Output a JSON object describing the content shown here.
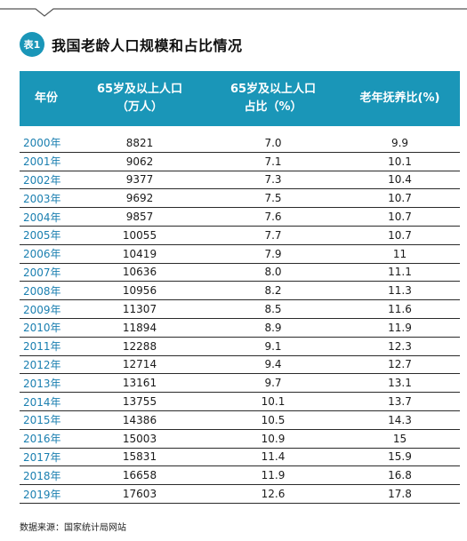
{
  "badge": "表1",
  "title": "我国老龄人口规模和占比情况",
  "columns": [
    "年份",
    "65岁及以上人口\n（万人）",
    "65岁及以上人口\n占比（%）",
    "老年抚养比(%)"
  ],
  "rows": [
    [
      "2000年",
      "8821",
      "7.0",
      "9.9"
    ],
    [
      "2001年",
      "9062",
      "7.1",
      "10.1"
    ],
    [
      "2002年",
      "9377",
      "7.3",
      "10.4"
    ],
    [
      "2003年",
      "9692",
      "7.5",
      "10.7"
    ],
    [
      "2004年",
      "9857",
      "7.6",
      "10.7"
    ],
    [
      "2005年",
      "10055",
      "7.7",
      "10.7"
    ],
    [
      "2006年",
      "10419",
      "7.9",
      "11"
    ],
    [
      "2007年",
      "10636",
      "8.0",
      "11.1"
    ],
    [
      "2008年",
      "10956",
      "8.2",
      "11.3"
    ],
    [
      "2009年",
      "11307",
      "8.5",
      "11.6"
    ],
    [
      "2010年",
      "11894",
      "8.9",
      "11.9"
    ],
    [
      "2011年",
      "12288",
      "9.1",
      "12.3"
    ],
    [
      "2012年",
      "12714",
      "9.4",
      "12.7"
    ],
    [
      "2013年",
      "13161",
      "9.7",
      "13.1"
    ],
    [
      "2014年",
      "13755",
      "10.1",
      "13.7"
    ],
    [
      "2015年",
      "14386",
      "10.5",
      "14.3"
    ],
    [
      "2016年",
      "15003",
      "10.9",
      "15"
    ],
    [
      "2017年",
      "15831",
      "11.4",
      "15.9"
    ],
    [
      "2018年",
      "16658",
      "11.9",
      "16.8"
    ],
    [
      "2019年",
      "17603",
      "12.6",
      "17.8"
    ]
  ],
  "source": "数据来源：国家统计局网站",
  "colors": {
    "accent": "#1a96b8",
    "year_text": "#1a7fb0"
  }
}
